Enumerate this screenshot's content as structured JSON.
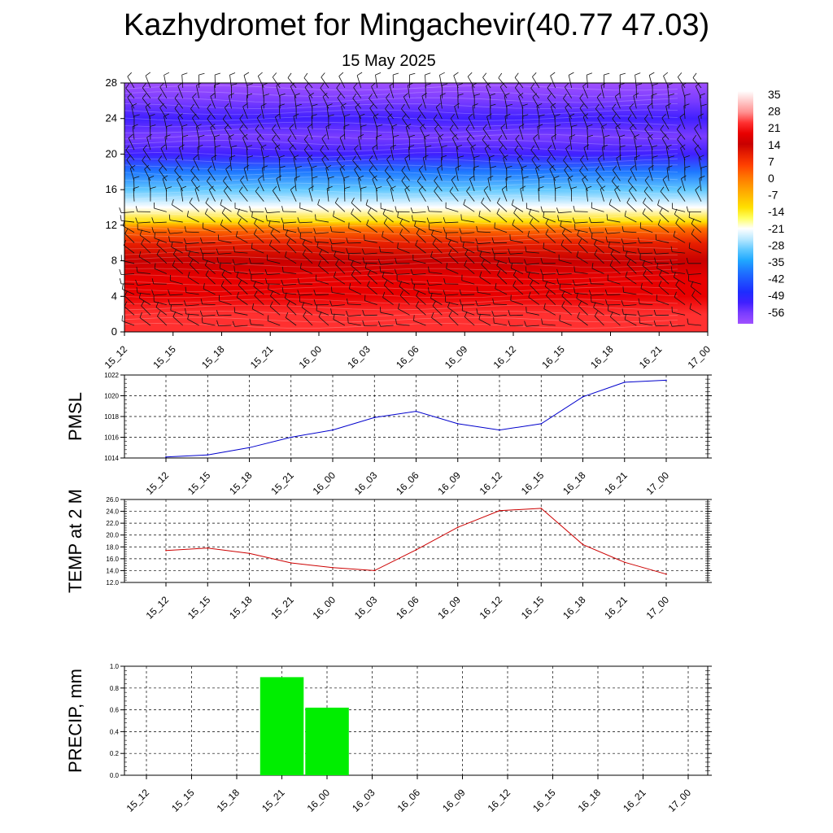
{
  "title": "Kazhydromet for Mingachevir(40.77 47.03)",
  "subtitle": "15 May 2025",
  "chart_data": [
    {
      "type": "heatmap",
      "name": "cross-section",
      "xlabels": [
        "15_12",
        "15_15",
        "15_18",
        "15_21",
        "16_00",
        "16_03",
        "16_06",
        "16_09",
        "16_12",
        "16_15",
        "16_18",
        "16_21",
        "17_00"
      ],
      "ylim": [
        0,
        28
      ],
      "yticks": [
        0,
        4,
        8,
        12,
        16,
        20,
        24,
        28
      ],
      "colorbar": {
        "labels": [
          "35",
          "28",
          "21",
          "14",
          "7",
          "0",
          "-7",
          "-14",
          "-21",
          "-28",
          "-35",
          "-42",
          "-49",
          "-56"
        ],
        "colors": [
          "#ffffff",
          "#ffc8c8",
          "#ff9090",
          "#ff3030",
          "#e80000",
          "#c80000",
          "#e82000",
          "#ff4000",
          "#ff7000",
          "#ff9800",
          "#ffbc00",
          "#ffe000",
          "#ffff60",
          "#ffffff",
          "#b8e8ff",
          "#60c8ff",
          "#20a8ff",
          "#1e78ff",
          "#1e50ff",
          "#1e2cff",
          "#4020ff",
          "#7a3cff",
          "#a050ff"
        ]
      },
      "series": [
        {
          "values_level_temp": [
            [
              0,
              24
            ],
            [
              2,
              22
            ],
            [
              4,
              20
            ],
            [
              6,
              17
            ],
            [
              8,
              13
            ],
            [
              10,
              8
            ],
            [
              11.6,
              0
            ],
            [
              12.4,
              -14
            ],
            [
              14,
              -24
            ],
            [
              16,
              -33
            ],
            [
              18,
              -44
            ],
            [
              20,
              -56
            ],
            [
              22,
              -60
            ],
            [
              24,
              -58
            ],
            [
              26,
              -62
            ],
            [
              28,
              -66
            ]
          ]
        }
      ]
    },
    {
      "type": "line",
      "ylabel": "PMSL",
      "xlabels": [
        "15_12",
        "15_15",
        "15_18",
        "15_21",
        "16_00",
        "16_03",
        "16_06",
        "16_09",
        "16_12",
        "16_15",
        "16_18",
        "16_21",
        "17_00"
      ],
      "yticks": [
        "1014",
        "1016",
        "1018",
        "1020",
        "1022"
      ],
      "ylim": [
        1014,
        1022
      ],
      "color": "#0000cc",
      "values": [
        1014.1,
        1014.3,
        1015.0,
        1016.0,
        1016.7,
        1017.9,
        1018.5,
        1017.3,
        1016.7,
        1017.3,
        1019.9,
        1021.3,
        1021.5
      ]
    },
    {
      "type": "line",
      "ylabel": "TEMP at 2 M",
      "xlabels": [
        "15_12",
        "15_15",
        "15_18",
        "15_21",
        "16_00",
        "16_03",
        "16_06",
        "16_09",
        "16_12",
        "16_15",
        "16_18",
        "16_21",
        "17_00"
      ],
      "yticks": [
        "12.0",
        "14.0",
        "16.0",
        "18.0",
        "20.0",
        "22.0",
        "24.0",
        "26.0"
      ],
      "ylim": [
        12,
        26
      ],
      "color": "#cc0000",
      "values": [
        17.4,
        17.8,
        16.9,
        15.3,
        14.5,
        14.0,
        17.5,
        21.3,
        24.1,
        24.5,
        18.4,
        15.4,
        13.4
      ]
    },
    {
      "type": "bar",
      "ylabel": "PRECIP, mm",
      "xlabels": [
        "15_12",
        "15_15",
        "15_18",
        "15_21",
        "16_00",
        "16_03",
        "16_06",
        "16_09",
        "16_12",
        "16_15",
        "16_18",
        "16_21",
        "17_00"
      ],
      "yticks": [
        "0.0",
        "0.2",
        "0.4",
        "0.6",
        "0.8",
        "1.0"
      ],
      "ylim": [
        0,
        1.0
      ],
      "color": "#00ee00",
      "values": [
        0,
        0,
        0,
        0.9,
        0.62,
        0,
        0,
        0,
        0,
        0,
        0,
        0,
        0
      ]
    }
  ]
}
